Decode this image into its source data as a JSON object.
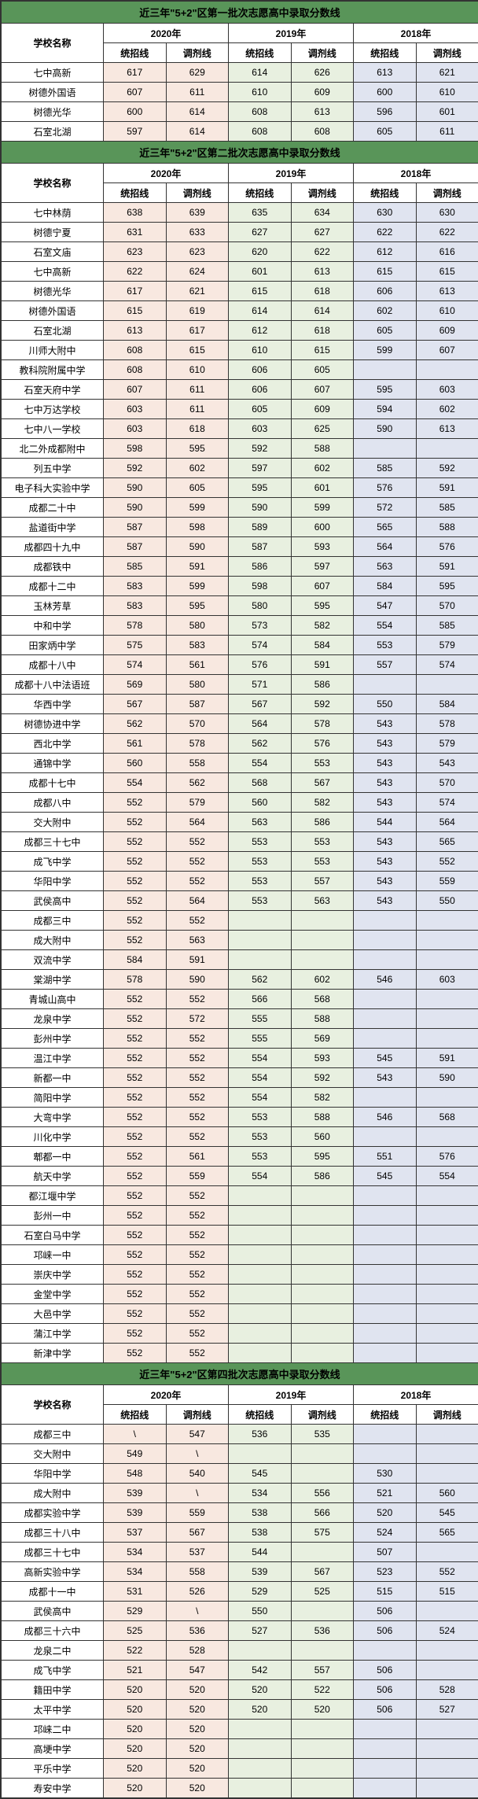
{
  "headers": {
    "school": "学校名称",
    "y2020": "2020年",
    "y2019": "2019年",
    "y2018": "2018年",
    "tongzhao": "统招线",
    "tiaoji": "调剂线"
  },
  "sections": [
    {
      "title": "近三年\"5+2\"区第一批次志愿高中录取分数线",
      "rows": [
        {
          "name": "七中高新",
          "v": [
            "617",
            "629",
            "614",
            "626",
            "613",
            "621"
          ]
        },
        {
          "name": "树德外国语",
          "v": [
            "607",
            "611",
            "610",
            "609",
            "600",
            "610"
          ]
        },
        {
          "name": "树德光华",
          "v": [
            "600",
            "614",
            "608",
            "613",
            "596",
            "601"
          ]
        },
        {
          "name": "石室北湖",
          "v": [
            "597",
            "614",
            "608",
            "608",
            "605",
            "611"
          ]
        }
      ]
    },
    {
      "title": "近三年\"5+2\"区第二批次志愿高中录取分数线",
      "rows": [
        {
          "name": "七中林荫",
          "v": [
            "638",
            "639",
            "635",
            "634",
            "630",
            "630"
          ]
        },
        {
          "name": "树德宁夏",
          "v": [
            "631",
            "633",
            "627",
            "627",
            "622",
            "622"
          ]
        },
        {
          "name": "石室文庙",
          "v": [
            "623",
            "623",
            "620",
            "622",
            "612",
            "616"
          ]
        },
        {
          "name": "七中高新",
          "v": [
            "622",
            "624",
            "601",
            "613",
            "615",
            "615"
          ]
        },
        {
          "name": "树德光华",
          "v": [
            "617",
            "621",
            "615",
            "618",
            "606",
            "613"
          ]
        },
        {
          "name": "树德外国语",
          "v": [
            "615",
            "619",
            "614",
            "614",
            "602",
            "610"
          ]
        },
        {
          "name": "石室北湖",
          "v": [
            "613",
            "617",
            "612",
            "618",
            "605",
            "609"
          ]
        },
        {
          "name": "川师大附中",
          "v": [
            "608",
            "615",
            "610",
            "615",
            "599",
            "607"
          ]
        },
        {
          "name": "教科院附属中学",
          "v": [
            "608",
            "610",
            "606",
            "605",
            "",
            ""
          ]
        },
        {
          "name": "石室天府中学",
          "v": [
            "607",
            "611",
            "606",
            "607",
            "595",
            "603"
          ]
        },
        {
          "name": "七中万达学校",
          "v": [
            "603",
            "611",
            "605",
            "609",
            "594",
            "602"
          ]
        },
        {
          "name": "七中八一学校",
          "v": [
            "603",
            "618",
            "603",
            "625",
            "590",
            "613"
          ]
        },
        {
          "name": "北二外成都附中",
          "v": [
            "598",
            "595",
            "592",
            "588",
            "",
            ""
          ]
        },
        {
          "name": "列五中学",
          "v": [
            "592",
            "602",
            "597",
            "602",
            "585",
            "592"
          ]
        },
        {
          "name": "电子科大实验中学",
          "v": [
            "590",
            "605",
            "595",
            "601",
            "576",
            "591"
          ]
        },
        {
          "name": "成都二十中",
          "v": [
            "590",
            "599",
            "590",
            "599",
            "572",
            "585"
          ]
        },
        {
          "name": "盐道街中学",
          "v": [
            "587",
            "598",
            "589",
            "600",
            "565",
            "588"
          ]
        },
        {
          "name": "成都四十九中",
          "v": [
            "587",
            "590",
            "587",
            "593",
            "564",
            "576"
          ]
        },
        {
          "name": "成都铁中",
          "v": [
            "585",
            "591",
            "586",
            "597",
            "563",
            "591"
          ]
        },
        {
          "name": "成都十二中",
          "v": [
            "583",
            "599",
            "598",
            "607",
            "584",
            "595"
          ]
        },
        {
          "name": "玉林芳草",
          "v": [
            "583",
            "595",
            "580",
            "595",
            "547",
            "570"
          ]
        },
        {
          "name": "中和中学",
          "v": [
            "578",
            "580",
            "573",
            "582",
            "554",
            "585"
          ]
        },
        {
          "name": "田家炳中学",
          "v": [
            "575",
            "583",
            "574",
            "584",
            "553",
            "579"
          ]
        },
        {
          "name": "成都十八中",
          "v": [
            "574",
            "561",
            "576",
            "591",
            "557",
            "574"
          ]
        },
        {
          "name": "成都十八中法语班",
          "v": [
            "569",
            "580",
            "571",
            "586",
            "",
            ""
          ]
        },
        {
          "name": "华西中学",
          "v": [
            "567",
            "587",
            "567",
            "592",
            "550",
            "584"
          ]
        },
        {
          "name": "树德协进中学",
          "v": [
            "562",
            "570",
            "564",
            "578",
            "543",
            "578"
          ]
        },
        {
          "name": "西北中学",
          "v": [
            "561",
            "578",
            "562",
            "576",
            "543",
            "579"
          ]
        },
        {
          "name": "通锦中学",
          "v": [
            "560",
            "558",
            "554",
            "553",
            "543",
            "543"
          ]
        },
        {
          "name": "成都十七中",
          "v": [
            "554",
            "562",
            "568",
            "567",
            "543",
            "570"
          ]
        },
        {
          "name": "成都八中",
          "v": [
            "552",
            "579",
            "560",
            "582",
            "543",
            "574"
          ]
        },
        {
          "name": "交大附中",
          "v": [
            "552",
            "564",
            "563",
            "586",
            "544",
            "564"
          ]
        },
        {
          "name": "成都三十七中",
          "v": [
            "552",
            "552",
            "553",
            "553",
            "543",
            "565"
          ]
        },
        {
          "name": "成飞中学",
          "v": [
            "552",
            "552",
            "553",
            "553",
            "543",
            "552"
          ]
        },
        {
          "name": "华阳中学",
          "v": [
            "552",
            "552",
            "553",
            "557",
            "543",
            "559"
          ]
        },
        {
          "name": "武侯高中",
          "v": [
            "552",
            "564",
            "553",
            "563",
            "543",
            "550"
          ]
        },
        {
          "name": "成都三中",
          "v": [
            "552",
            "552",
            "",
            "",
            "",
            ""
          ]
        },
        {
          "name": "成大附中",
          "v": [
            "552",
            "563",
            "",
            "",
            "",
            ""
          ]
        },
        {
          "name": "双流中学",
          "v": [
            "584",
            "591",
            "",
            "",
            "",
            ""
          ]
        },
        {
          "name": "棠湖中学",
          "v": [
            "578",
            "590",
            "562",
            "602",
            "546",
            "603"
          ]
        },
        {
          "name": "青城山高中",
          "v": [
            "552",
            "552",
            "566",
            "568",
            "",
            ""
          ]
        },
        {
          "name": "龙泉中学",
          "v": [
            "552",
            "572",
            "555",
            "588",
            "",
            ""
          ]
        },
        {
          "name": "彭州中学",
          "v": [
            "552",
            "552",
            "555",
            "569",
            "",
            ""
          ]
        },
        {
          "name": "温江中学",
          "v": [
            "552",
            "552",
            "554",
            "593",
            "545",
            "591"
          ]
        },
        {
          "name": "新都一中",
          "v": [
            "552",
            "552",
            "554",
            "592",
            "543",
            "590"
          ]
        },
        {
          "name": "简阳中学",
          "v": [
            "552",
            "552",
            "554",
            "582",
            "",
            ""
          ]
        },
        {
          "name": "大弯中学",
          "v": [
            "552",
            "552",
            "553",
            "588",
            "546",
            "568"
          ]
        },
        {
          "name": "川化中学",
          "v": [
            "552",
            "552",
            "553",
            "560",
            "",
            ""
          ]
        },
        {
          "name": "郫都一中",
          "v": [
            "552",
            "561",
            "553",
            "595",
            "551",
            "576"
          ]
        },
        {
          "name": "航天中学",
          "v": [
            "552",
            "559",
            "554",
            "586",
            "545",
            "554"
          ]
        },
        {
          "name": "都江堰中学",
          "v": [
            "552",
            "552",
            "",
            "",
            "",
            ""
          ]
        },
        {
          "name": "彭州一中",
          "v": [
            "552",
            "552",
            "",
            "",
            "",
            ""
          ]
        },
        {
          "name": "石室白马中学",
          "v": [
            "552",
            "552",
            "",
            "",
            "",
            ""
          ]
        },
        {
          "name": "邛崃一中",
          "v": [
            "552",
            "552",
            "",
            "",
            "",
            ""
          ]
        },
        {
          "name": "崇庆中学",
          "v": [
            "552",
            "552",
            "",
            "",
            "",
            ""
          ]
        },
        {
          "name": "金堂中学",
          "v": [
            "552",
            "552",
            "",
            "",
            "",
            ""
          ]
        },
        {
          "name": "大邑中学",
          "v": [
            "552",
            "552",
            "",
            "",
            "",
            ""
          ]
        },
        {
          "name": "蒲江中学",
          "v": [
            "552",
            "552",
            "",
            "",
            "",
            ""
          ]
        },
        {
          "name": "新津中学",
          "v": [
            "552",
            "552",
            "",
            "",
            "",
            ""
          ]
        }
      ]
    },
    {
      "title": "近三年\"5+2\"区第四批次志愿高中录取分数线",
      "rows": [
        {
          "name": "成都三中",
          "v": [
            "\\",
            "547",
            "536",
            "535",
            "",
            ""
          ]
        },
        {
          "name": "交大附中",
          "v": [
            "549",
            "\\",
            "",
            "",
            "",
            ""
          ]
        },
        {
          "name": "华阳中学",
          "v": [
            "548",
            "540",
            "545",
            "",
            "530",
            ""
          ]
        },
        {
          "name": "成大附中",
          "v": [
            "539",
            "\\",
            "534",
            "556",
            "521",
            "560"
          ]
        },
        {
          "name": "成都实验中学",
          "v": [
            "539",
            "559",
            "538",
            "566",
            "520",
            "545"
          ]
        },
        {
          "name": "成都三十八中",
          "v": [
            "537",
            "567",
            "538",
            "575",
            "524",
            "565"
          ]
        },
        {
          "name": "成都三十七中",
          "v": [
            "534",
            "537",
            "544",
            "",
            "507",
            ""
          ]
        },
        {
          "name": "高新实验中学",
          "v": [
            "534",
            "558",
            "539",
            "567",
            "523",
            "552"
          ]
        },
        {
          "name": "成都十一中",
          "v": [
            "531",
            "526",
            "529",
            "525",
            "515",
            "515"
          ]
        },
        {
          "name": "武侯高中",
          "v": [
            "529",
            "\\",
            "550",
            "",
            "506",
            ""
          ]
        },
        {
          "name": "成都三十六中",
          "v": [
            "525",
            "536",
            "527",
            "536",
            "506",
            "524"
          ]
        },
        {
          "name": "龙泉二中",
          "v": [
            "522",
            "528",
            "",
            "",
            "",
            ""
          ]
        },
        {
          "name": "成飞中学",
          "v": [
            "521",
            "547",
            "542",
            "557",
            "506",
            ""
          ]
        },
        {
          "name": "籍田中学",
          "v": [
            "520",
            "520",
            "520",
            "522",
            "506",
            "528"
          ]
        },
        {
          "name": "太平中学",
          "v": [
            "520",
            "520",
            "520",
            "520",
            "506",
            "527"
          ]
        },
        {
          "name": "邛崃二中",
          "v": [
            "520",
            "520",
            "",
            "",
            "",
            ""
          ]
        },
        {
          "name": "高埂中学",
          "v": [
            "520",
            "520",
            "",
            "",
            "",
            ""
          ]
        },
        {
          "name": "平乐中学",
          "v": [
            "520",
            "520",
            "",
            "",
            "",
            ""
          ]
        },
        {
          "name": "寿安中学",
          "v": [
            "520",
            "520",
            "",
            "",
            "",
            ""
          ]
        }
      ]
    }
  ]
}
